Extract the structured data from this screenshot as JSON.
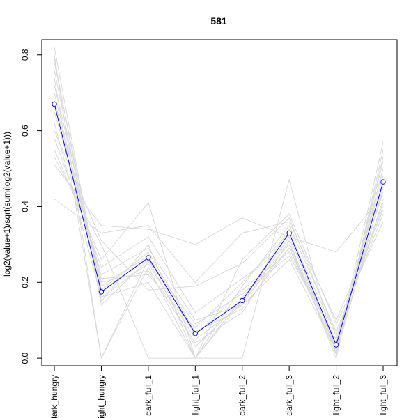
{
  "chart_data": {
    "type": "line",
    "title": "581",
    "xlabel": "",
    "ylabel": "log2(value+1)/sqrt(sum(log2(value+1)))",
    "categories": [
      "dark_hungry",
      "light_hungry",
      "dark_full_1",
      "light_full_1",
      "dark_full_2",
      "dark_full_3",
      "light_full_2",
      "light_full_3"
    ],
    "ylim": [
      -0.02,
      0.84
    ],
    "yticks": [
      0.0,
      0.2,
      0.4,
      0.6,
      0.8
    ],
    "ytick_labels": [
      "0.0",
      "0.2",
      "0.4",
      "0.6",
      "0.8"
    ],
    "grid": false,
    "highlight_series": {
      "color": "#0000ff",
      "marker": "circle-open",
      "values": [
        0.67,
        0.175,
        0.265,
        0.065,
        0.152,
        0.33,
        0.035,
        0.465
      ]
    },
    "background_series_color": "#d9d9d9",
    "background_series": [
      [
        0.82,
        0.16,
        0.25,
        0.05,
        0.14,
        0.32,
        0.03,
        0.5
      ],
      [
        0.8,
        0.0,
        0.24,
        0.0,
        0.16,
        0.3,
        0.01,
        0.45
      ],
      [
        0.78,
        0.18,
        0.28,
        0.07,
        0.13,
        0.29,
        0.04,
        0.48
      ],
      [
        0.76,
        0.15,
        0.3,
        0.0,
        0.15,
        0.34,
        0.02,
        0.52
      ],
      [
        0.74,
        0.0,
        0.26,
        0.09,
        0.17,
        0.27,
        0.05,
        0.44
      ],
      [
        0.72,
        0.2,
        0.23,
        0.04,
        0.12,
        0.31,
        0.0,
        0.55
      ],
      [
        0.7,
        0.19,
        0.27,
        0.06,
        0.18,
        0.28,
        0.03,
        0.42
      ],
      [
        0.68,
        0.21,
        0.22,
        0.08,
        0.2,
        0.33,
        0.06,
        0.4
      ],
      [
        0.65,
        0.22,
        0.29,
        0.1,
        0.14,
        0.26,
        0.02,
        0.57
      ],
      [
        0.62,
        0.16,
        0.2,
        0.0,
        0.19,
        0.35,
        0.07,
        0.38
      ],
      [
        0.58,
        0.24,
        0.32,
        0.12,
        0.21,
        0.3,
        0.04,
        0.46
      ],
      [
        0.55,
        0.26,
        0.41,
        0.0,
        0.0,
        0.47,
        0.01,
        0.5
      ],
      [
        0.53,
        0.3,
        0.0,
        0.0,
        0.26,
        0.38,
        0.09,
        0.36
      ],
      [
        0.51,
        0.35,
        0.34,
        0.3,
        0.37,
        0.32,
        0.28,
        0.43
      ],
      [
        0.42,
        0.33,
        0.35,
        0.2,
        0.33,
        0.36,
        0.1,
        0.39
      ],
      [
        0.6,
        0.31,
        0.18,
        0.19,
        0.25,
        0.37,
        0.06,
        0.41
      ],
      [
        0.79,
        0.14,
        0.26,
        0.03,
        0.15,
        0.29,
        0.02,
        0.53
      ]
    ]
  }
}
